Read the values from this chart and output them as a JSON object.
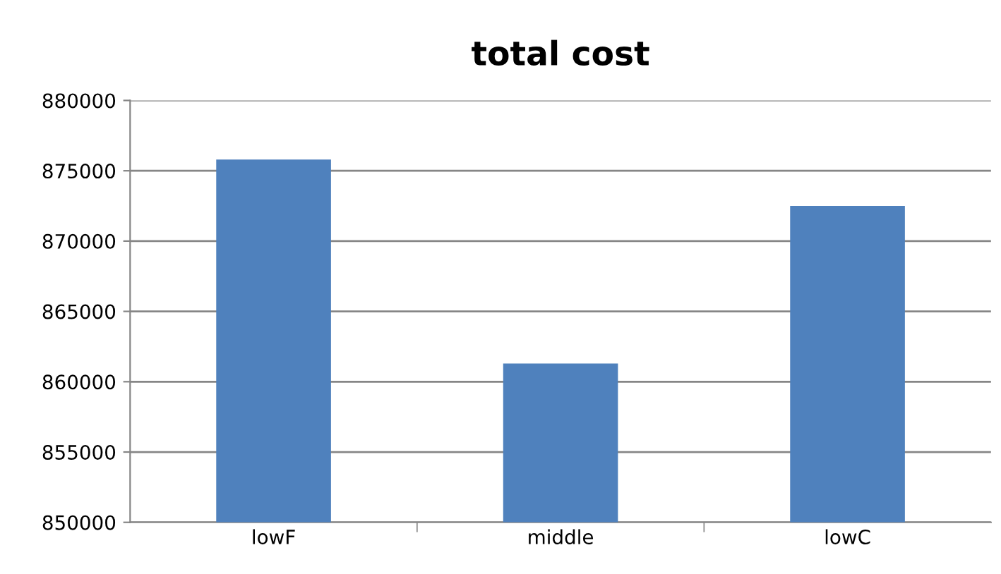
{
  "chart_data": {
    "type": "bar",
    "title": "total cost",
    "categories": [
      "lowF",
      "middle",
      "lowC"
    ],
    "values": [
      875800,
      861300,
      872500
    ],
    "color": "#4f81bd",
    "ylim": [
      850000,
      880000
    ],
    "yticks": [
      850000,
      855000,
      860000,
      865000,
      870000,
      875000,
      880000
    ],
    "grid": "y",
    "legend": false
  }
}
